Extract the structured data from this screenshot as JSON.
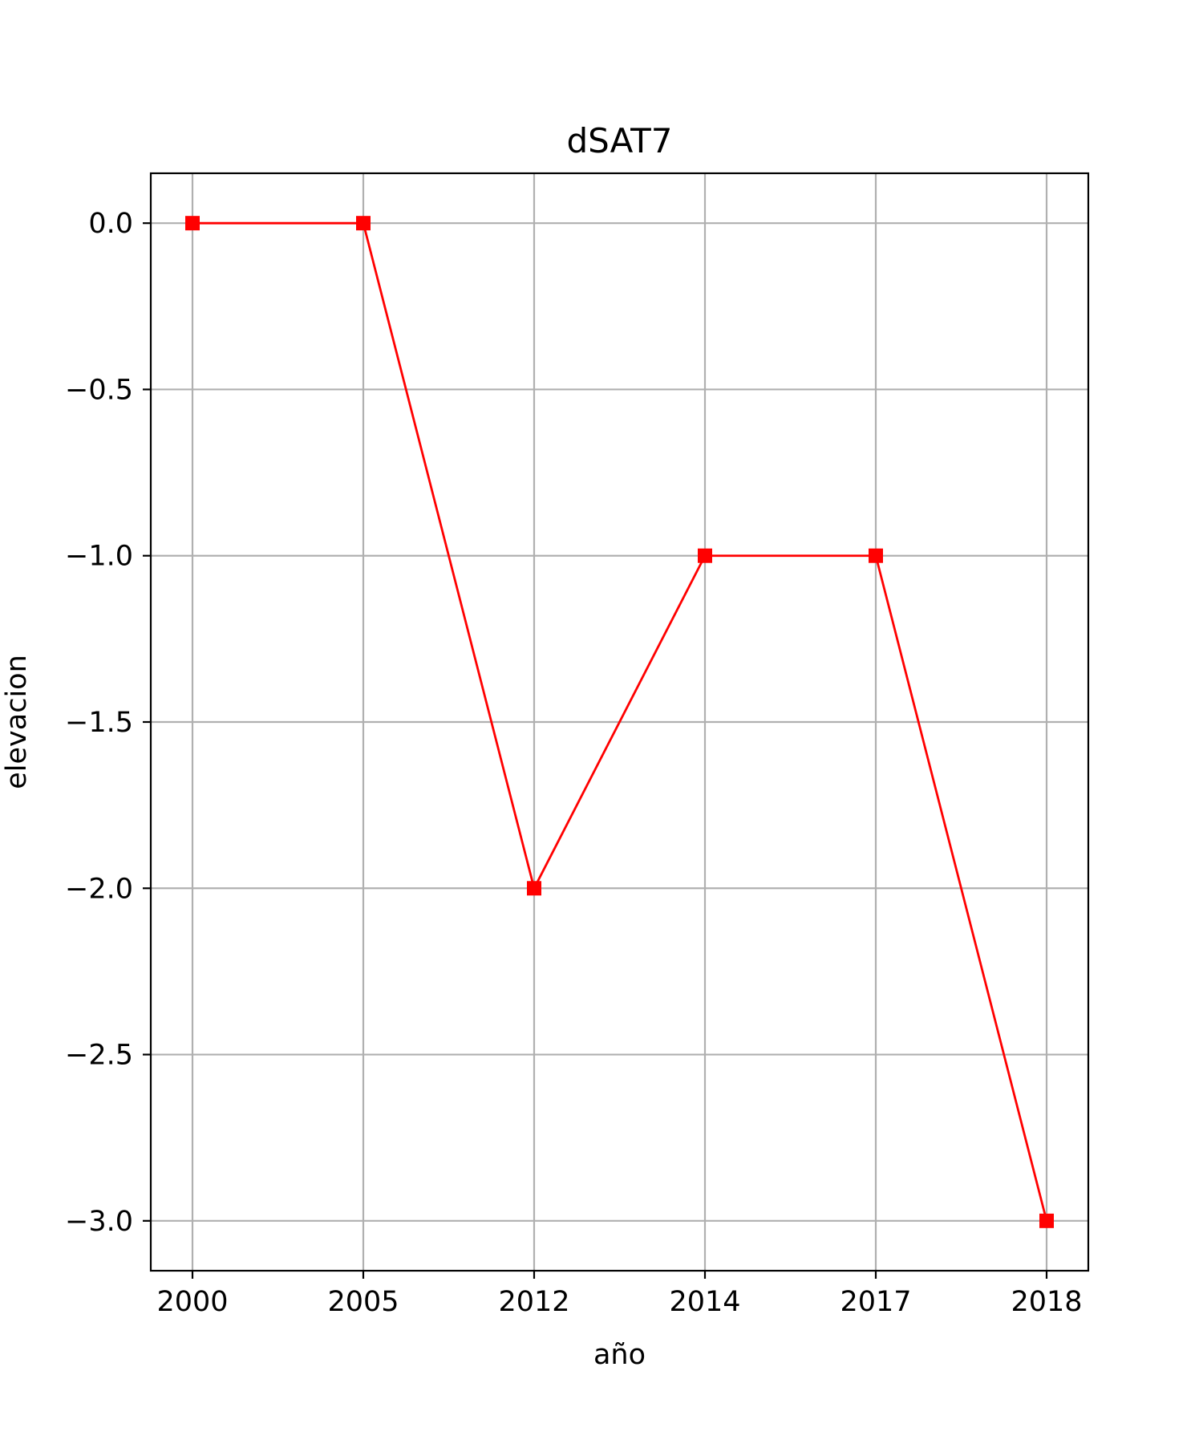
{
  "chart_data": {
    "type": "line",
    "title": "dSAT7",
    "xlabel": "año",
    "ylabel": "elevacion",
    "categories": [
      "2000",
      "2005",
      "2012",
      "2014",
      "2017",
      "2018"
    ],
    "series": [
      {
        "values": [
          0.0,
          0.0,
          -2.0,
          -1.0,
          -1.0,
          -3.0
        ],
        "color": "#ff0000",
        "marker": "square"
      }
    ],
    "ylim": [
      -3.15,
      0.15
    ],
    "yticks": [
      0.0,
      -0.5,
      -1.0,
      -1.5,
      -2.0,
      -2.5,
      -3.0
    ],
    "ytick_labels": [
      "0.0",
      "−0.5",
      "−1.0",
      "−1.5",
      "−2.0",
      "−2.5",
      "−3.0"
    ],
    "grid": true,
    "colors": {
      "grid": "#b0b0b0",
      "axes": "#000000"
    }
  }
}
